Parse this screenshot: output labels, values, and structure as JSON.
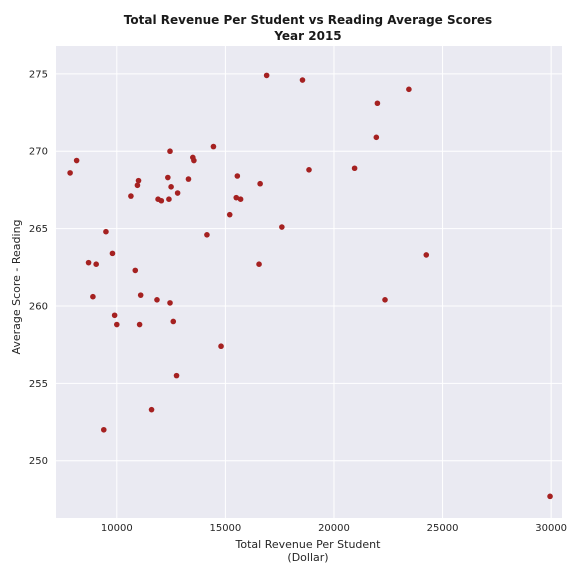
{
  "chart_data": {
    "type": "scatter",
    "title": "Total Revenue Per Student vs Reading Average Scores",
    "subtitle": "Year 2015",
    "xlabel": "Total Revenue Per Student",
    "xlabel_unit": "(Dollar)",
    "ylabel": "Average Score - Reading",
    "xlim": [
      7200,
      30500
    ],
    "ylim": [
      246.3,
      276.8
    ],
    "xticks": [
      10000,
      15000,
      20000,
      25000,
      30000
    ],
    "yticks": [
      250,
      255,
      260,
      265,
      270,
      275
    ],
    "grid": true,
    "colors": {
      "background": "#eaeaf2",
      "grid": "#ffffff",
      "marker": "#a52121"
    },
    "points": [
      {
        "x": 7850,
        "y": 268.6
      },
      {
        "x": 8150,
        "y": 269.4
      },
      {
        "x": 8700,
        "y": 262.8
      },
      {
        "x": 8900,
        "y": 260.6
      },
      {
        "x": 9050,
        "y": 262.7
      },
      {
        "x": 9400,
        "y": 252.0
      },
      {
        "x": 9500,
        "y": 264.8
      },
      {
        "x": 9800,
        "y": 263.4
      },
      {
        "x": 9900,
        "y": 259.4
      },
      {
        "x": 10000,
        "y": 258.8
      },
      {
        "x": 10650,
        "y": 267.1
      },
      {
        "x": 10850,
        "y": 262.3
      },
      {
        "x": 10950,
        "y": 267.8
      },
      {
        "x": 11000,
        "y": 268.1
      },
      {
        "x": 11050,
        "y": 258.8
      },
      {
        "x": 11100,
        "y": 260.7
      },
      {
        "x": 11600,
        "y": 253.3
      },
      {
        "x": 11850,
        "y": 260.4
      },
      {
        "x": 11900,
        "y": 266.9
      },
      {
        "x": 12050,
        "y": 266.8
      },
      {
        "x": 12350,
        "y": 268.3
      },
      {
        "x": 12400,
        "y": 266.9
      },
      {
        "x": 12450,
        "y": 260.2
      },
      {
        "x": 12450,
        "y": 270.0
      },
      {
        "x": 12500,
        "y": 267.7
      },
      {
        "x": 12600,
        "y": 259.0
      },
      {
        "x": 12750,
        "y": 255.5
      },
      {
        "x": 12800,
        "y": 267.3
      },
      {
        "x": 13300,
        "y": 268.2
      },
      {
        "x": 13500,
        "y": 269.6
      },
      {
        "x": 13550,
        "y": 269.4
      },
      {
        "x": 14150,
        "y": 264.6
      },
      {
        "x": 14450,
        "y": 270.3
      },
      {
        "x": 14800,
        "y": 257.4
      },
      {
        "x": 15200,
        "y": 265.9
      },
      {
        "x": 15500,
        "y": 267.0
      },
      {
        "x": 15550,
        "y": 268.4
      },
      {
        "x": 15700,
        "y": 266.9
      },
      {
        "x": 16550,
        "y": 262.7
      },
      {
        "x": 16600,
        "y": 267.9
      },
      {
        "x": 16900,
        "y": 274.9
      },
      {
        "x": 17600,
        "y": 265.1
      },
      {
        "x": 18550,
        "y": 274.6
      },
      {
        "x": 18850,
        "y": 268.8
      },
      {
        "x": 20950,
        "y": 268.9
      },
      {
        "x": 21950,
        "y": 270.9
      },
      {
        "x": 22000,
        "y": 273.1
      },
      {
        "x": 22350,
        "y": 260.4
      },
      {
        "x": 23450,
        "y": 274.0
      },
      {
        "x": 24250,
        "y": 263.3
      },
      {
        "x": 29950,
        "y": 247.7
      }
    ]
  }
}
